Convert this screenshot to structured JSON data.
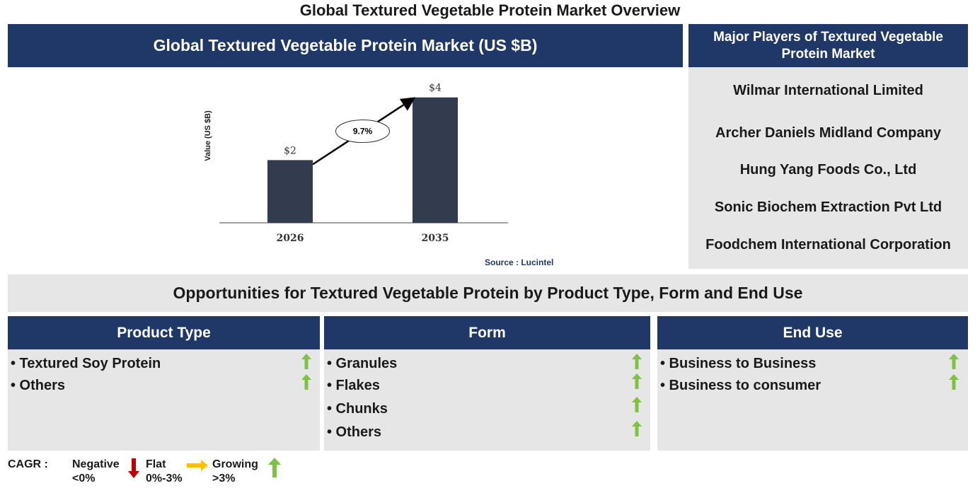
{
  "page_title": "Global Textured Vegetable Protein Market Overview",
  "chart_panel": {
    "header": "Global Textured Vegetable Protein Market (US $B)",
    "source": "Source : Lucintel"
  },
  "chart_data": {
    "type": "bar",
    "categories": [
      "2026",
      "2035"
    ],
    "values": [
      2,
      4
    ],
    "data_labels": [
      "$2",
      "$4"
    ],
    "ylabel": "Value (US $B)",
    "ylim": [
      0,
      4.4
    ],
    "cagr_label": "9.7%",
    "bar_color": "#323c4e",
    "grid": false
  },
  "players": {
    "header": "Major Players of Textured Vegetable Protein Market",
    "items": [
      "Wilmar International Limited",
      "Archer Daniels Midland Company",
      "Hung Yang Foods Co., Ltd",
      "Sonic Biochem Extraction Pvt Ltd",
      "Foodchem International Corporation"
    ]
  },
  "opportunities_title": "Opportunities for Textured Vegetable Protein by Product Type, Form and End Use",
  "columns": [
    {
      "header": "Product Type",
      "items": [
        "• Textured Soy Protein",
        "• Others"
      ]
    },
    {
      "header": "Form",
      "items": [
        "• Granules",
        "• Flakes",
        "• Chunks",
        "• Others"
      ]
    },
    {
      "header": "End Use",
      "items": [
        "• Business to Business",
        "• Business to consumer"
      ]
    }
  ],
  "legend": {
    "label": "CAGR :",
    "negative": [
      "Negative",
      "<0%"
    ],
    "flat": [
      "Flat",
      "0%-3%"
    ],
    "growing": [
      "Growing",
      ">3%"
    ]
  },
  "colors": {
    "navy": "#1f3868",
    "grey": "#e6e6e6",
    "up_arrow": "#7dc243",
    "down_arrow": "#c00000",
    "flat_arrow": "#ffc000"
  }
}
